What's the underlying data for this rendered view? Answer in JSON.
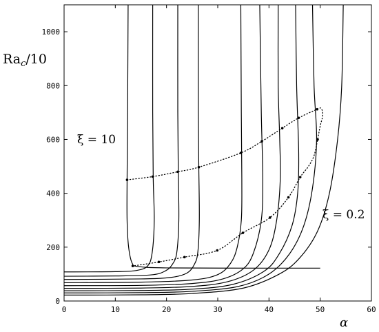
{
  "chart_data": {
    "type": "line",
    "title": "",
    "xlabel": "α",
    "ylabel": "Ra",
    "ylabel_sub": "c",
    "ylabel_suffix": "/10",
    "xlim": [
      0,
      60
    ],
    "ylim": [
      0,
      1100
    ],
    "xticks": [
      0,
      10,
      20,
      30,
      40,
      50,
      60
    ],
    "yticks": [
      0,
      200,
      400,
      600,
      800,
      1000
    ],
    "grid": false,
    "annotations": [
      {
        "text": "ξ = 10",
        "x": 2.5,
        "y": 600
      },
      {
        "text": "ξ = 0.2",
        "x": 50.5,
        "y": 320
      }
    ],
    "solid_curves": [
      {
        "asymptote": 12.5,
        "floor": 122,
        "points": [
          [
            12.5,
            1100
          ],
          [
            12.4,
            700
          ],
          [
            12.3,
            450
          ],
          [
            12.3,
            300
          ],
          [
            12.6,
            200
          ],
          [
            13.3,
            140
          ],
          [
            14.5,
            128
          ],
          [
            20,
            123
          ],
          [
            40,
            122
          ],
          [
            50,
            122
          ]
        ]
      },
      {
        "asymptote": 17.3,
        "floor": 108,
        "points": [
          [
            0,
            108
          ],
          [
            10,
            109
          ],
          [
            14,
            113
          ],
          [
            16.3,
            130
          ],
          [
            17.2,
            180
          ],
          [
            17.6,
            300
          ],
          [
            17.4,
            460
          ],
          [
            17.3,
            700
          ],
          [
            17.3,
            1100
          ]
        ]
      },
      {
        "asymptote": 22.2,
        "floor": 92,
        "points": [
          [
            0,
            92
          ],
          [
            10,
            93
          ],
          [
            17,
            97
          ],
          [
            19.8,
            112
          ],
          [
            21.2,
            138
          ],
          [
            22.0,
            180
          ],
          [
            22.4,
            300
          ],
          [
            22.3,
            480
          ],
          [
            22.2,
            700
          ],
          [
            22.2,
            1100
          ]
        ]
      },
      {
        "asymptote": 26.2,
        "floor": 80,
        "points": [
          [
            0,
            80
          ],
          [
            15,
            82
          ],
          [
            21,
            88
          ],
          [
            24,
            104
          ],
          [
            25.4,
            135
          ],
          [
            26.1,
            180
          ],
          [
            26.4,
            300
          ],
          [
            26.3,
            500
          ],
          [
            26.2,
            700
          ],
          [
            26.2,
            1100
          ]
        ]
      },
      {
        "asymptote": 34.5,
        "floor": 68,
        "points": [
          [
            0,
            68
          ],
          [
            15,
            70
          ],
          [
            25,
            78
          ],
          [
            30,
            98
          ],
          [
            32.5,
            140
          ],
          [
            33.8,
            200
          ],
          [
            34.6,
            300
          ],
          [
            34.7,
            450
          ],
          [
            34.6,
            700
          ],
          [
            34.5,
            1100
          ]
        ]
      },
      {
        "asymptote": 38.2,
        "floor": 57,
        "points": [
          [
            0,
            57
          ],
          [
            15,
            58
          ],
          [
            25,
            65
          ],
          [
            31,
            82
          ],
          [
            35,
            120
          ],
          [
            37,
            180
          ],
          [
            38.5,
            300
          ],
          [
            38.8,
            450
          ],
          [
            38.5,
            700
          ],
          [
            38.2,
            1100
          ]
        ]
      },
      {
        "asymptote": 41.8,
        "floor": 47,
        "points": [
          [
            0,
            47
          ],
          [
            15,
            48
          ],
          [
            25,
            54
          ],
          [
            32,
            72
          ],
          [
            37,
            115
          ],
          [
            40,
            190
          ],
          [
            41.5,
            300
          ],
          [
            42.2,
            450
          ],
          [
            42.1,
            600
          ],
          [
            41.8,
            800
          ],
          [
            41.8,
            1100
          ]
        ]
      },
      {
        "asymptote": 45.2,
        "floor": 38,
        "points": [
          [
            0,
            38
          ],
          [
            15,
            39
          ],
          [
            25,
            44
          ],
          [
            33,
            62
          ],
          [
            39,
            110
          ],
          [
            42,
            175
          ],
          [
            44.5,
            280
          ],
          [
            45.6,
            400
          ],
          [
            45.8,
            550
          ],
          [
            45.4,
            800
          ],
          [
            45.2,
            1100
          ]
        ]
      },
      {
        "asymptote": 48.5,
        "floor": 30,
        "points": [
          [
            0,
            30
          ],
          [
            15,
            31
          ],
          [
            25,
            36
          ],
          [
            34,
            54
          ],
          [
            40,
            100
          ],
          [
            44,
            175
          ],
          [
            46.8,
            280
          ],
          [
            48.5,
            420
          ],
          [
            49.3,
            600
          ],
          [
            48.8,
            800
          ],
          [
            48.5,
            1100
          ]
        ]
      },
      {
        "asymptote": 54.5,
        "floor": 22,
        "points": [
          [
            0,
            22
          ],
          [
            15,
            23
          ],
          [
            25,
            28
          ],
          [
            35,
            48
          ],
          [
            42,
            100
          ],
          [
            46,
            160
          ],
          [
            49.5,
            260
          ],
          [
            51.8,
            400
          ],
          [
            53.4,
            600
          ],
          [
            54.2,
            800
          ],
          [
            54.5,
            1100
          ]
        ]
      }
    ],
    "dotted_loop": {
      "upper": [
        [
          12.3,
          450
        ],
        [
          17.3,
          462
        ],
        [
          22.2,
          480
        ],
        [
          26.3,
          497
        ],
        [
          34.5,
          550
        ],
        [
          38.6,
          593
        ],
        [
          42.6,
          642
        ],
        [
          45.8,
          680
        ],
        [
          49.4,
          712
        ]
      ],
      "turn": [
        [
          50.2,
          715
        ],
        [
          50.5,
          690
        ],
        [
          50.0,
          650
        ],
        [
          49.5,
          600
        ]
      ],
      "lower": [
        [
          49.5,
          600
        ],
        [
          48.8,
          540
        ],
        [
          47.7,
          500
        ],
        [
          46.1,
          460
        ],
        [
          43.8,
          385
        ],
        [
          40.2,
          310
        ],
        [
          34.9,
          253
        ],
        [
          29.9,
          188
        ],
        [
          23.5,
          163
        ],
        [
          18.5,
          145
        ],
        [
          13.4,
          130
        ]
      ]
    },
    "markers": [
      [
        12.3,
        450
      ],
      [
        17.3,
        462
      ],
      [
        22.2,
        480
      ],
      [
        26.3,
        497
      ],
      [
        34.5,
        550
      ],
      [
        38.6,
        593
      ],
      [
        42.6,
        642
      ],
      [
        45.8,
        680
      ],
      [
        49.4,
        712
      ],
      [
        49.5,
        600
      ],
      [
        46.1,
        460
      ],
      [
        43.8,
        385
      ],
      [
        40.2,
        310
      ],
      [
        34.9,
        253
      ],
      [
        29.9,
        188
      ],
      [
        23.5,
        163
      ],
      [
        18.5,
        145
      ],
      [
        13.4,
        130
      ]
    ]
  }
}
